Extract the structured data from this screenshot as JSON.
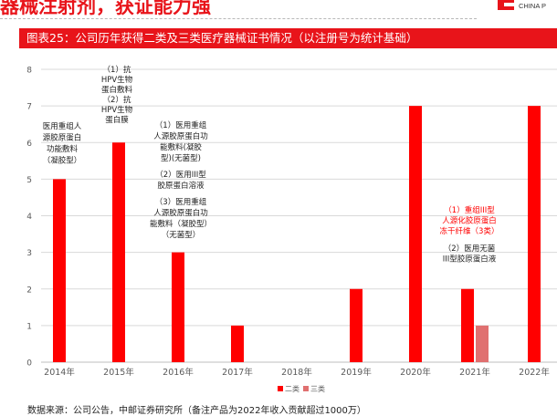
{
  "header": {
    "heading": "器械注射剂，获证能力强",
    "brand_en": "CHINA P"
  },
  "colors": {
    "accent": "#e8141a",
    "series_2": "#ff0000",
    "series_3": "#e07070",
    "grid": "#d9d9d9",
    "axis_text": "#595959",
    "annotation_red": "#ff0000"
  },
  "chart_data": {
    "type": "bar",
    "title": "图表25：公司历年获得二类及三类医疗器械证书情况（以注册号为统计基础）",
    "categories": [
      "2014年",
      "2015年",
      "2016年",
      "2017年",
      "2018年",
      "2019年",
      "2020年",
      "2021年",
      "2022年"
    ],
    "series": [
      {
        "name": "二类",
        "values": [
          5,
          6,
          3,
          1,
          0,
          2,
          7,
          2,
          7
        ]
      },
      {
        "name": "三类",
        "values": [
          0,
          0,
          0,
          0,
          0,
          0,
          0,
          1,
          0
        ]
      }
    ],
    "ylim": [
      0,
      8
    ],
    "yticks": [
      "0",
      "1",
      "2",
      "3",
      "4",
      "5",
      "6",
      "7",
      "8"
    ],
    "grid": true,
    "legend": "bottom",
    "annotations": [
      {
        "category": "2014年",
        "color": "dark",
        "lines": [
          "医用重组人",
          "源胶原蛋白",
          "功能敷料",
          "（凝胶型）"
        ]
      },
      {
        "category": "2015年",
        "color": "dark",
        "lines": [
          "（1）抗",
          "HPV生物",
          "蛋白敷料",
          "（2）抗",
          "HPV生物",
          "蛋白膜"
        ]
      },
      {
        "category": "2016年",
        "color": "dark",
        "lines": [
          "（1）医用重组",
          "人源胶原蛋白功",
          "能敷料(凝胶",
          "型)(无菌型)",
          "（2）医用III型",
          "胶原蛋白溶液",
          "（3）医用重组",
          "人源胶原蛋白功",
          "能敷料（凝胶型）",
          "（无菌型）"
        ]
      },
      {
        "category": "2021年",
        "color": "red",
        "lines": [
          "（1）重组III型",
          "人源化胶原蛋白",
          "冻干纤维（3类）"
        ]
      },
      {
        "category": "2021年",
        "color": "dark",
        "lines": [
          "（2）医用无菌",
          "III型胶原蛋白液"
        ]
      }
    ]
  },
  "footer": {
    "source": "数据来源：公司公告，中邮证券研究所（备注产品为2022年收入贡献超过1000万）"
  }
}
